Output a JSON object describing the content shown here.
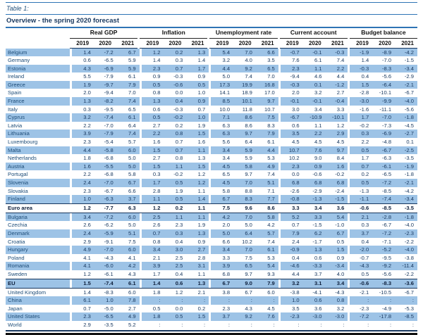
{
  "page": {
    "title": "Table 1:",
    "subtitle": "Overview - the spring 2020 forecast"
  },
  "colors": {
    "row_highlight": "#9dc3e6",
    "rule_blue": "#2e74b5",
    "separator_navy": "#17365d",
    "text_navy": "#17375e"
  },
  "table": {
    "column_groups": [
      "Real GDP",
      "Inflation",
      "Unemployment rate",
      "Current account",
      "Budget balance"
    ],
    "years": [
      "2019",
      "2020",
      "2021"
    ],
    "rows": [
      {
        "name": "Belgium",
        "highlight": true,
        "emphasis": false,
        "values": [
          [
            "1.4",
            "-7.2",
            "6.7"
          ],
          [
            "1.2",
            "0.2",
            "1.3"
          ],
          [
            "5.4",
            "7.0",
            "6.6"
          ],
          [
            "-0.7",
            "-0.1",
            "-0.3"
          ],
          [
            "-1.9",
            "-8.9",
            "-4.2"
          ]
        ]
      },
      {
        "name": "Germany",
        "highlight": false,
        "emphasis": false,
        "values": [
          [
            "0.6",
            "-6.5",
            "5.9"
          ],
          [
            "1.4",
            "0.3",
            "1.4"
          ],
          [
            "3.2",
            "4.0",
            "3.5"
          ],
          [
            "7.6",
            "6.1",
            "7.4"
          ],
          [
            "1.4",
            "-7.0",
            "-1.5"
          ]
        ]
      },
      {
        "name": "Estonia",
        "highlight": true,
        "emphasis": false,
        "values": [
          [
            "4.3",
            "-6.9",
            "5.9"
          ],
          [
            "2.3",
            "0.7",
            "1.7"
          ],
          [
            "4.4",
            "9.2",
            "6.5"
          ],
          [
            "2.3",
            "1.1",
            "2.2"
          ],
          [
            "-0.3",
            "-8.3",
            "-3.4"
          ]
        ]
      },
      {
        "name": "Ireland",
        "highlight": false,
        "emphasis": false,
        "values": [
          [
            "5.5",
            "-7.9",
            "6.1"
          ],
          [
            "0.9",
            "-0.3",
            "0.9"
          ],
          [
            "5.0",
            "7.4",
            "7.0"
          ],
          [
            "-9.4",
            "4.6",
            "4.4"
          ],
          [
            "0.4",
            "-5.6",
            "-2.9"
          ]
        ]
      },
      {
        "name": "Greece",
        "highlight": true,
        "emphasis": false,
        "values": [
          [
            "1.9",
            "-9.7",
            "7.9"
          ],
          [
            "0.5",
            "-0.6",
            "0.5"
          ],
          [
            "17.3",
            "19.9",
            "16.8"
          ],
          [
            "-0.3",
            "0.1",
            "-1.2"
          ],
          [
            "1.5",
            "-6.4",
            "-2.1"
          ]
        ]
      },
      {
        "name": "Spain",
        "highlight": false,
        "emphasis": false,
        "values": [
          [
            "2.0",
            "-9.4",
            "7.0"
          ],
          [
            "0.8",
            "0.0",
            "1.0"
          ],
          [
            "14.1",
            "18.9",
            "17.0"
          ],
          [
            "2.0",
            "3.2",
            "2.7"
          ],
          [
            "-2.8",
            "-10.1",
            "-6.7"
          ]
        ]
      },
      {
        "name": "France",
        "highlight": true,
        "emphasis": false,
        "values": [
          [
            "1.3",
            "-8.2",
            "7.4"
          ],
          [
            "1.3",
            "0.4",
            "0.9"
          ],
          [
            "8.5",
            "10.1",
            "9.7"
          ],
          [
            "-0.1",
            "-0.1",
            "-0.4"
          ],
          [
            "-3.0",
            "-9.9",
            "-4.0"
          ]
        ]
      },
      {
        "name": "Italy",
        "highlight": false,
        "emphasis": false,
        "values": [
          [
            "0.3",
            "-9.5",
            "6.5"
          ],
          [
            "0.6",
            "-0.3",
            "0.7"
          ],
          [
            "10.0",
            "11.8",
            "10.7"
          ],
          [
            "3.0",
            "3.4",
            "3.3"
          ],
          [
            "-1.6",
            "-11.1",
            "-5.6"
          ]
        ]
      },
      {
        "name": "Cyprus",
        "highlight": true,
        "emphasis": false,
        "values": [
          [
            "3.2",
            "-7.4",
            "6.1"
          ],
          [
            "0.5",
            "-0.2",
            "1.0"
          ],
          [
            "7.1",
            "8.6",
            "7.5"
          ],
          [
            "-6.7",
            "-10.9",
            "-10.1"
          ],
          [
            "1.7",
            "-7.0",
            "-1.8"
          ]
        ]
      },
      {
        "name": "Latvia",
        "highlight": false,
        "emphasis": false,
        "values": [
          [
            "2.2",
            "-7.0",
            "6.4"
          ],
          [
            "2.7",
            "0.2",
            "1.9"
          ],
          [
            "6.3",
            "8.6",
            "8.3"
          ],
          [
            "0.6",
            "1.1",
            "1.2"
          ],
          [
            "-0.2",
            "-7.3",
            "-4.5"
          ]
        ]
      },
      {
        "name": "Lithuania",
        "highlight": true,
        "emphasis": false,
        "values": [
          [
            "3.9",
            "-7.9",
            "7.4"
          ],
          [
            "2.2",
            "0.8",
            "1.5"
          ],
          [
            "6.3",
            "9.7",
            "7.9"
          ],
          [
            "3.5",
            "2.2",
            "2.9"
          ],
          [
            "0.3",
            "-6.9",
            "-2.7"
          ]
        ]
      },
      {
        "name": "Luxembourg",
        "highlight": false,
        "emphasis": false,
        "values": [
          [
            "2.3",
            "-5.4",
            "5.7"
          ],
          [
            "1.6",
            "0.7",
            "1.6"
          ],
          [
            "5.6",
            "6.4",
            "6.1"
          ],
          [
            "4.5",
            "4.5",
            "4.5"
          ],
          [
            "2.2",
            "-4.8",
            "0.1"
          ]
        ]
      },
      {
        "name": "Malta",
        "highlight": true,
        "emphasis": false,
        "values": [
          [
            "4.4",
            "-5.8",
            "6.0"
          ],
          [
            "1.5",
            "0.7",
            "1.1"
          ],
          [
            "3.4",
            "5.9",
            "4.4"
          ],
          [
            "10.7",
            "7.6",
            "9.7"
          ],
          [
            "0.5",
            "-6.7",
            "-2.5"
          ]
        ]
      },
      {
        "name": "Netherlands",
        "highlight": false,
        "emphasis": false,
        "values": [
          [
            "1.8",
            "-6.8",
            "5.0"
          ],
          [
            "2.7",
            "0.8",
            "1.3"
          ],
          [
            "3.4",
            "5.9",
            "5.3"
          ],
          [
            "10.2",
            "9.0",
            "8.4"
          ],
          [
            "1.7",
            "-6.3",
            "-3.5"
          ]
        ]
      },
      {
        "name": "Austria",
        "highlight": true,
        "emphasis": false,
        "values": [
          [
            "1.6",
            "-5.5",
            "5.0"
          ],
          [
            "1.5",
            "1.1",
            "1.5"
          ],
          [
            "4.5",
            "5.8",
            "4.9"
          ],
          [
            "2.3",
            "0.9",
            "1.6"
          ],
          [
            "0.7",
            "-6.1",
            "-1.9"
          ]
        ]
      },
      {
        "name": "Portugal",
        "highlight": false,
        "emphasis": false,
        "values": [
          [
            "2.2",
            "-6.8",
            "5.8"
          ],
          [
            "0.3",
            "-0.2",
            "1.2"
          ],
          [
            "6.5",
            "9.7",
            "7.4"
          ],
          [
            "0.0",
            "-0.6",
            "-0.2"
          ],
          [
            "0.2",
            "-6.5",
            "-1.8"
          ]
        ]
      },
      {
        "name": "Slovenia",
        "highlight": true,
        "emphasis": false,
        "values": [
          [
            "2.4",
            "-7.0",
            "6.7"
          ],
          [
            "1.7",
            "0.5",
            "1.2"
          ],
          [
            "4.5",
            "7.0",
            "5.1"
          ],
          [
            "6.8",
            "6.8",
            "6.8"
          ],
          [
            "0.5",
            "-7.2",
            "-2.1"
          ]
        ]
      },
      {
        "name": "Slovakia",
        "highlight": false,
        "emphasis": false,
        "values": [
          [
            "2.3",
            "-6.7",
            "6.6"
          ],
          [
            "2.8",
            "1.9",
            "1.1"
          ],
          [
            "5.8",
            "8.8",
            "7.1"
          ],
          [
            "-2.6",
            "-2.9",
            "-2.4"
          ],
          [
            "-1.3",
            "-8.5",
            "-4.2"
          ]
        ]
      },
      {
        "name": "Finland",
        "highlight": true,
        "emphasis": false,
        "values": [
          [
            "1.0",
            "-6.3",
            "3.7"
          ],
          [
            "1.1",
            "0.5",
            "1.4"
          ],
          [
            "6.7",
            "8.3",
            "7.7"
          ],
          [
            "-0.8",
            "-1.3",
            "-1.5"
          ],
          [
            "-1.1",
            "-7.4",
            "-3.4"
          ]
        ]
      },
      {
        "name": "Euro area",
        "highlight": false,
        "emphasis": true,
        "values": [
          [
            "1.2",
            "-7.7",
            "6.3"
          ],
          [
            "1.2",
            "0.2",
            "1.1"
          ],
          [
            "7.5",
            "9.6",
            "8.6"
          ],
          [
            "3.3",
            "3.4",
            "3.6"
          ],
          [
            "-0.6",
            "-8.5",
            "-3.5"
          ]
        ]
      },
      {
        "name": "Bulgaria",
        "highlight": true,
        "emphasis": false,
        "values": [
          [
            "3.4",
            "-7.2",
            "6.0"
          ],
          [
            "2.5",
            "1.1",
            "1.1"
          ],
          [
            "4.2",
            "7.0",
            "5.8"
          ],
          [
            "5.2",
            "3.3",
            "5.4"
          ],
          [
            "2.1",
            "-2.8",
            "-1.8"
          ]
        ]
      },
      {
        "name": "Czechia",
        "highlight": false,
        "emphasis": false,
        "values": [
          [
            "2.6",
            "-6.2",
            "5.0"
          ],
          [
            "2.6",
            "2.3",
            "1.9"
          ],
          [
            "2.0",
            "5.0",
            "4.2"
          ],
          [
            "0.7",
            "-1.5",
            "-1.0"
          ],
          [
            "0.3",
            "-6.7",
            "-4.0"
          ]
        ]
      },
      {
        "name": "Denmark",
        "highlight": true,
        "emphasis": false,
        "values": [
          [
            "2.4",
            "-5.9",
            "5.1"
          ],
          [
            "0.7",
            "0.3",
            "1.3"
          ],
          [
            "5.0",
            "6.4",
            "5.7"
          ],
          [
            "7.9",
            "6.2",
            "6.7"
          ],
          [
            "3.7",
            "-7.2",
            "-2.3"
          ]
        ]
      },
      {
        "name": "Croatia",
        "highlight": false,
        "emphasis": false,
        "values": [
          [
            "2.9",
            "-9.1",
            "7.5"
          ],
          [
            "0.8",
            "0.4",
            "0.9"
          ],
          [
            "6.6",
            "10.2",
            "7.4"
          ],
          [
            "2.4",
            "-1.7",
            "0.5"
          ],
          [
            "0.4",
            "-7.1",
            "-2.2"
          ]
        ]
      },
      {
        "name": "Hungary",
        "highlight": true,
        "emphasis": false,
        "values": [
          [
            "4.9",
            "-7.0",
            "6.0"
          ],
          [
            "3.4",
            "3.0",
            "2.7"
          ],
          [
            "3.4",
            "7.0",
            "6.1"
          ],
          [
            "-0.9",
            "1.3",
            "1.5"
          ],
          [
            "-2.0",
            "-5.2",
            "-4.0"
          ]
        ]
      },
      {
        "name": "Poland",
        "highlight": false,
        "emphasis": false,
        "values": [
          [
            "4.1",
            "-4.3",
            "4.1"
          ],
          [
            "2.1",
            "2.5",
            "2.8"
          ],
          [
            "3.3",
            "7.5",
            "5.3"
          ],
          [
            "0.4",
            "0.6",
            "0.9"
          ],
          [
            "-0.7",
            "-9.5",
            "-3.8"
          ]
        ]
      },
      {
        "name": "Romania",
        "highlight": true,
        "emphasis": false,
        "values": [
          [
            "4.1",
            "-6.0",
            "4.2"
          ],
          [
            "3.9",
            "2.5",
            "3.1"
          ],
          [
            "3.9",
            "6.5",
            "5.4"
          ],
          [
            "-4.6",
            "-3.3",
            "-3.4"
          ],
          [
            "-4.3",
            "-9.2",
            "-11.4"
          ]
        ]
      },
      {
        "name": "Sweden",
        "highlight": false,
        "emphasis": false,
        "values": [
          [
            "1.2",
            "-6.1",
            "4.3"
          ],
          [
            "1.7",
            "0.4",
            "1.1"
          ],
          [
            "6.8",
            "9.7",
            "9.3"
          ],
          [
            "4.4",
            "3.7",
            "4.0"
          ],
          [
            "0.5",
            "-5.6",
            "-2.2"
          ]
        ]
      },
      {
        "name": "EU",
        "highlight": true,
        "emphasis": true,
        "values": [
          [
            "1.5",
            "-7.4",
            "6.1"
          ],
          [
            "1.4",
            "0.6",
            "1.3"
          ],
          [
            "6.7",
            "9.0",
            "7.9"
          ],
          [
            "3.2",
            "3.1",
            "3.4"
          ],
          [
            "-0.6",
            "-8.3",
            "-3.6"
          ]
        ]
      },
      {
        "name": "United Kingdom",
        "highlight": false,
        "emphasis": false,
        "values": [
          [
            "1.4",
            "-8.3",
            "6.0"
          ],
          [
            "1.8",
            "1.2",
            "2.1"
          ],
          [
            "3.8",
            "6.7",
            "6.0"
          ],
          [
            "-3.8",
            "-4.1",
            "-4.3"
          ],
          [
            "-2.1",
            "-10.5",
            "-6.7"
          ]
        ]
      },
      {
        "name": "China",
        "highlight": true,
        "emphasis": false,
        "values": [
          [
            "6.1",
            "1.0",
            "7.8"
          ],
          [
            ":",
            ":",
            ":"
          ],
          [
            ":",
            ":",
            ":"
          ],
          [
            "1.0",
            "0.6",
            "0.8"
          ],
          [
            ":",
            ":",
            ":"
          ]
        ]
      },
      {
        "name": "Japan",
        "highlight": false,
        "emphasis": false,
        "values": [
          [
            "0.7",
            "-5.0",
            "2.7"
          ],
          [
            "0.5",
            "0.0",
            "0.2"
          ],
          [
            "2.3",
            "4.3",
            "4.5"
          ],
          [
            "3.5",
            "3.6",
            "3.2"
          ],
          [
            "-2.3",
            "-4.9",
            "-5.3"
          ]
        ]
      },
      {
        "name": "United States",
        "highlight": true,
        "emphasis": false,
        "values": [
          [
            "2.3",
            "-6.5",
            "4.9"
          ],
          [
            "1.8",
            "0.5",
            "1.5"
          ],
          [
            "3.7",
            "9.2",
            "7.6"
          ],
          [
            "-2.3",
            "-3.0",
            "-3.0"
          ],
          [
            "-7.2",
            "-17.8",
            "-8.5"
          ]
        ]
      },
      {
        "name": "World",
        "highlight": false,
        "emphasis": false,
        "values": [
          [
            "2.9",
            "-3.5",
            "5.2"
          ],
          [
            ":",
            ":",
            ":"
          ],
          [
            ":",
            ":",
            ":"
          ],
          [
            ":",
            ":",
            ":"
          ],
          [
            ":",
            ":",
            ":"
          ]
        ]
      }
    ]
  }
}
